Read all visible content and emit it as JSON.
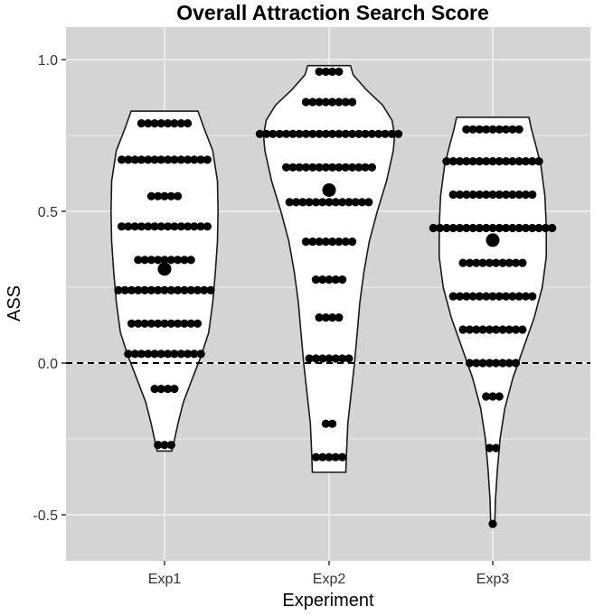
{
  "chart_data": {
    "type": "violin",
    "title": "Overall Attraction Search Score",
    "xlabel": "Experiment",
    "ylabel": "ASS",
    "categories": [
      "Exp1",
      "Exp2",
      "Exp3"
    ],
    "ylim": [
      -0.63,
      1.08
    ],
    "yticks": [
      1.0,
      0.5,
      0.0,
      -0.5
    ],
    "ytick_labels": [
      "1.0",
      "0.5",
      "0.0",
      "-0.5"
    ],
    "reference_line": {
      "y": 0.0,
      "style": "dashed"
    },
    "grid": true,
    "colors": {
      "panel": "#d4d4d4",
      "grid": "#ebebeb",
      "violin_fill": "#ffffff",
      "dot": "#000000"
    },
    "series": [
      {
        "category": "Exp1",
        "mean": 0.31,
        "ymin": -0.29,
        "ymax": 0.83,
        "density_profile": [
          [
            -0.29,
            0.11
          ],
          [
            -0.26,
            0.14
          ],
          [
            -0.2,
            0.2
          ],
          [
            -0.13,
            0.28
          ],
          [
            -0.06,
            0.4
          ],
          [
            0.02,
            0.54
          ],
          [
            0.1,
            0.66
          ],
          [
            0.2,
            0.72
          ],
          [
            0.3,
            0.76
          ],
          [
            0.4,
            0.79
          ],
          [
            0.5,
            0.8
          ],
          [
            0.6,
            0.79
          ],
          [
            0.7,
            0.72
          ],
          [
            0.78,
            0.58
          ],
          [
            0.83,
            0.5
          ]
        ],
        "dot_rows": [
          {
            "y": 0.79,
            "n": 8
          },
          {
            "y": 0.67,
            "n": 14
          },
          {
            "y": 0.55,
            "n": 5
          },
          {
            "y": 0.45,
            "n": 14
          },
          {
            "y": 0.34,
            "n": 9
          },
          {
            "y": 0.24,
            "n": 15
          },
          {
            "y": 0.13,
            "n": 11
          },
          {
            "y": 0.03,
            "n": 12
          },
          {
            "y": -0.085,
            "n": 4
          },
          {
            "y": -0.27,
            "n": 3
          }
        ]
      },
      {
        "category": "Exp2",
        "mean": 0.57,
        "ymin": -0.36,
        "ymax": 0.98,
        "density_profile": [
          [
            -0.36,
            0.25
          ],
          [
            -0.3,
            0.26
          ],
          [
            -0.2,
            0.28
          ],
          [
            -0.1,
            0.33
          ],
          [
            0.0,
            0.38
          ],
          [
            0.1,
            0.42
          ],
          [
            0.2,
            0.46
          ],
          [
            0.3,
            0.52
          ],
          [
            0.4,
            0.6
          ],
          [
            0.5,
            0.72
          ],
          [
            0.6,
            0.86
          ],
          [
            0.7,
            0.96
          ],
          [
            0.75,
            0.98
          ],
          [
            0.8,
            0.94
          ],
          [
            0.85,
            0.8
          ],
          [
            0.9,
            0.56
          ],
          [
            0.95,
            0.36
          ],
          [
            0.98,
            0.32
          ]
        ],
        "dot_rows": [
          {
            "y": 0.96,
            "n": 4
          },
          {
            "y": 0.86,
            "n": 8
          },
          {
            "y": 0.755,
            "n": 22
          },
          {
            "y": 0.645,
            "n": 14
          },
          {
            "y": 0.53,
            "n": 13
          },
          {
            "y": 0.4,
            "n": 8
          },
          {
            "y": 0.275,
            "n": 5
          },
          {
            "y": 0.15,
            "n": 4
          },
          {
            "y": 0.015,
            "n": 7
          },
          {
            "y": -0.2,
            "n": 2
          },
          {
            "y": -0.31,
            "n": 5
          }
        ]
      },
      {
        "category": "Exp3",
        "mean": 0.405,
        "ymin": -0.53,
        "ymax": 0.81,
        "density_profile": [
          [
            -0.53,
            0.03
          ],
          [
            -0.45,
            0.04
          ],
          [
            -0.35,
            0.07
          ],
          [
            -0.25,
            0.11
          ],
          [
            -0.15,
            0.18
          ],
          [
            -0.05,
            0.3
          ],
          [
            0.05,
            0.46
          ],
          [
            0.15,
            0.62
          ],
          [
            0.25,
            0.74
          ],
          [
            0.35,
            0.8
          ],
          [
            0.45,
            0.8
          ],
          [
            0.55,
            0.78
          ],
          [
            0.65,
            0.72
          ],
          [
            0.72,
            0.64
          ],
          [
            0.77,
            0.58
          ],
          [
            0.81,
            0.54
          ]
        ],
        "dot_rows": [
          {
            "y": 0.77,
            "n": 9
          },
          {
            "y": 0.665,
            "n": 15
          },
          {
            "y": 0.555,
            "n": 13
          },
          {
            "y": 0.445,
            "n": 19
          },
          {
            "y": 0.33,
            "n": 10
          },
          {
            "y": 0.22,
            "n": 13
          },
          {
            "y": 0.11,
            "n": 10
          },
          {
            "y": 0.0,
            "n": 8
          },
          {
            "y": -0.11,
            "n": 3
          },
          {
            "y": -0.28,
            "n": 2
          },
          {
            "y": -0.53,
            "n": 1
          }
        ]
      }
    ]
  }
}
